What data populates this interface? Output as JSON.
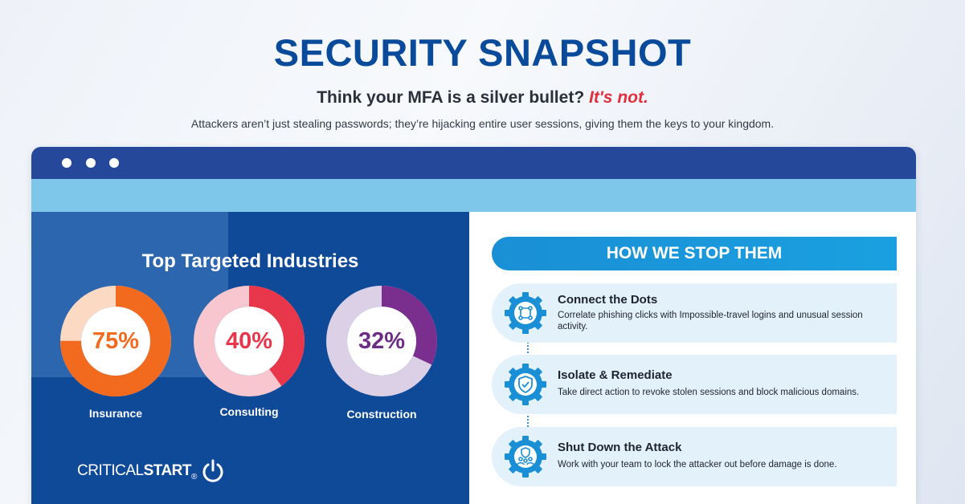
{
  "header": {
    "title": "SECURITY SNAPSHOT",
    "subtitle_main": "Think your MFA is a silver bullet? ",
    "subtitle_accent": "It's not.",
    "description": "Attackers aren’t just stealing passwords; they’re hijacking entire user sessions, giving them the keys to your kingdom."
  },
  "industries": {
    "heading": "Top Targeted Industries",
    "items": [
      {
        "value": "75%",
        "label": "Insurance",
        "percent": 75,
        "color": "#f26a1e",
        "track": "#fbd9c3",
        "text_color": "#f26a1e"
      },
      {
        "value": "40%",
        "label": "Consulting",
        "percent": 40,
        "color": "#e8364a",
        "track": "#f7c6cf",
        "text_color": "#e8364a"
      },
      {
        "value": "32%",
        "label": "Construction",
        "percent": 32,
        "color": "#7a2f8f",
        "track": "#dcd0e6",
        "text_color": "#6b2d86"
      }
    ]
  },
  "brand": {
    "name_light": "CRITICAL",
    "name_bold": "START",
    "mark": "®"
  },
  "stop": {
    "heading": "HOW WE STOP THEM",
    "steps": [
      {
        "title": "Connect the Dots",
        "description": "Correlate phishing clicks with Impossible-travel logins and unusual session activity.",
        "icon": "network-icon"
      },
      {
        "title": "Isolate & Remediate",
        "description": "Take direct action to revoke stolen sessions and block malicious domains.",
        "icon": "shield-check-icon"
      },
      {
        "title": "Shut Down the Attack",
        "description": "Work with your team to lock the attacker out before damage is done.",
        "icon": "team-shield-icon"
      }
    ]
  },
  "colors": {
    "title": "#0a4a9a",
    "accent": "#e0303e",
    "panel_blue": "#0f4a99",
    "banner_blue": "#1a8fd5",
    "titlebar": "#25489b"
  }
}
